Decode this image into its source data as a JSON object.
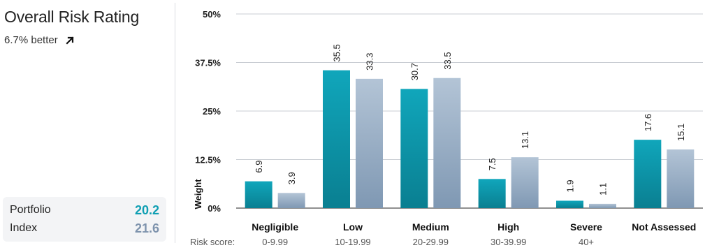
{
  "panel": {
    "title": "Overall Risk Rating",
    "comparison": "6.7% better",
    "comparison_icon": "arrow-up-right-icon",
    "scores": [
      {
        "label": "Portfolio",
        "value": "20.2",
        "color": "#0f9fb3"
      },
      {
        "label": "Index",
        "value": "21.6",
        "color": "#7e93ad"
      }
    ]
  },
  "chart_data": {
    "type": "bar",
    "ylabel": "Weight",
    "ylim": [
      0,
      50
    ],
    "yticks": [
      "0%",
      "12.5%",
      "25%",
      "37.5%",
      "50%"
    ],
    "ytick_values": [
      0,
      12.5,
      25,
      37.5,
      50
    ],
    "grid": true,
    "range_prefix": "Risk score:",
    "categories": [
      "Negligible",
      "Low",
      "Medium",
      "High",
      "Severe",
      "Not Assessed"
    ],
    "ranges": [
      "0-9.99",
      "10-19.99",
      "20-29.99",
      "30-39.99",
      "40+",
      ""
    ],
    "series": [
      {
        "name": "Portfolio",
        "values": [
          6.9,
          35.5,
          30.7,
          7.5,
          1.9,
          17.6
        ],
        "labels": [
          "6.9",
          "35.5",
          "30.7",
          "7.5",
          "1.9",
          "17.6"
        ],
        "color_top": "#10a6bb",
        "color_bottom": "#0a7f91"
      },
      {
        "name": "Index",
        "values": [
          3.9,
          33.3,
          33.5,
          13.1,
          1.1,
          15.1
        ],
        "labels": [
          "3.9",
          "33.3",
          "33.5",
          "13.1",
          "1.1",
          "15.1"
        ],
        "color_top": "#b3c4d6",
        "color_bottom": "#7f98b3"
      }
    ]
  }
}
